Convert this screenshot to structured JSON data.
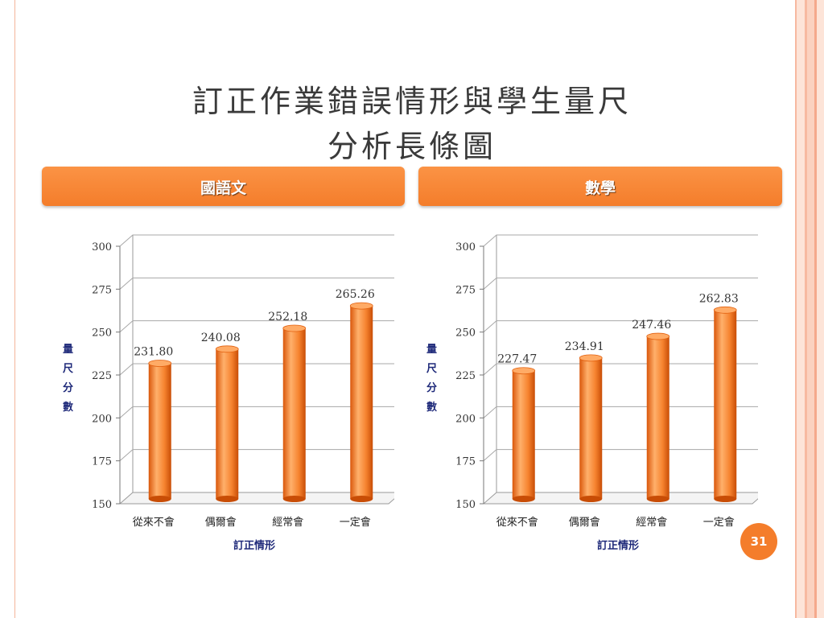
{
  "slide": {
    "title_line1": "訂正作業錯誤情形與學生量尺",
    "title_line2": "分析長條圖",
    "page_number": "31"
  },
  "panels": {
    "left_header": "國語文",
    "right_header": "數學"
  },
  "colors": {
    "accent": "#f47d2b",
    "bar_light": "#ffb06b",
    "bar_dark": "#e2600f",
    "axis_title": "#1f2a7a"
  },
  "chart_data": [
    {
      "type": "bar",
      "title": "",
      "xlabel": "訂正情形",
      "ylabel": "量尺分數",
      "ylabel_chars": [
        "量",
        "尺",
        "分",
        "數"
      ],
      "categories": [
        "從來不會",
        "偶爾會",
        "經常會",
        "一定會"
      ],
      "values": [
        231.8,
        240.08,
        252.18,
        265.26
      ],
      "value_labels": [
        "231.80",
        "240.08",
        "252.18",
        "265.26"
      ],
      "ylim": [
        150,
        300
      ],
      "yticks": [
        "150",
        "175",
        "200",
        "225",
        "250",
        "275",
        "300"
      ],
      "grid": true
    },
    {
      "type": "bar",
      "title": "",
      "xlabel": "訂正情形",
      "ylabel": "量尺分數",
      "ylabel_chars": [
        "量",
        "尺",
        "分",
        "數"
      ],
      "categories": [
        "從來不會",
        "偶爾會",
        "經常會",
        "一定會"
      ],
      "values": [
        227.47,
        234.91,
        247.46,
        262.83
      ],
      "value_labels": [
        "227.47",
        "234.91",
        "247.46",
        "262.83"
      ],
      "ylim": [
        150,
        300
      ],
      "yticks": [
        "150",
        "175",
        "200",
        "225",
        "250",
        "275",
        "300"
      ],
      "grid": true
    }
  ]
}
